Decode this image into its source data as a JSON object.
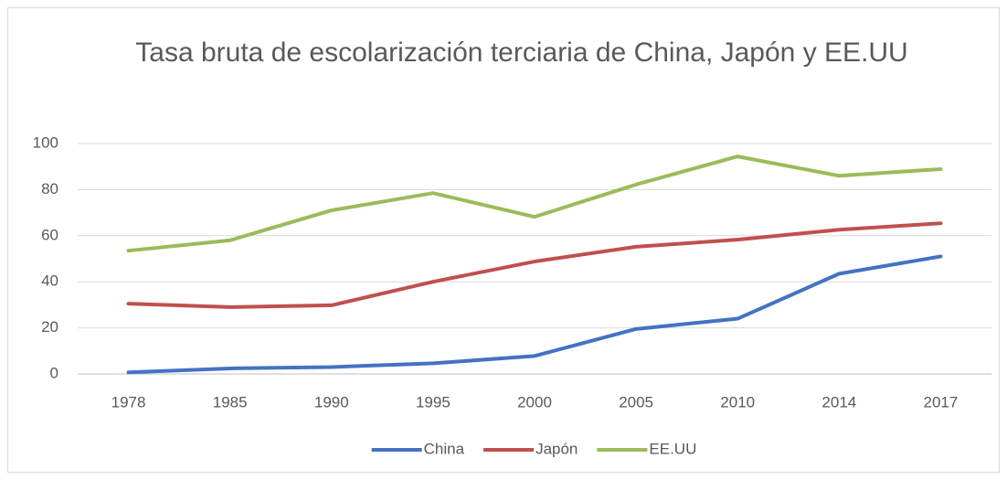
{
  "chart_data": {
    "type": "line",
    "title": "Tasa bruta de escolarización terciaria de China, Japón y EE.UU",
    "categories": [
      "1978",
      "1985",
      "1990",
      "1995",
      "2000",
      "2005",
      "2010",
      "2014",
      "2017"
    ],
    "series": [
      {
        "name": "China",
        "color": "#4472c4",
        "values": [
          0.7,
          2.4,
          3,
          4.6,
          7.8,
          19.5,
          24,
          43.5,
          51
        ]
      },
      {
        "name": "Japón",
        "color": "#c0504d",
        "values": [
          30.5,
          29,
          29.8,
          40,
          48.8,
          55.2,
          58.3,
          62.6,
          65.4
        ]
      },
      {
        "name": "EE.UU",
        "color": "#9bbb59",
        "values": [
          53.5,
          58,
          71,
          78.5,
          68.2,
          82.2,
          94.4,
          86,
          88.9
        ]
      }
    ],
    "ylim": [
      0,
      100
    ],
    "yticks": [
      0,
      20,
      40,
      60,
      80,
      100
    ],
    "grid": true,
    "legend": "bottom"
  }
}
